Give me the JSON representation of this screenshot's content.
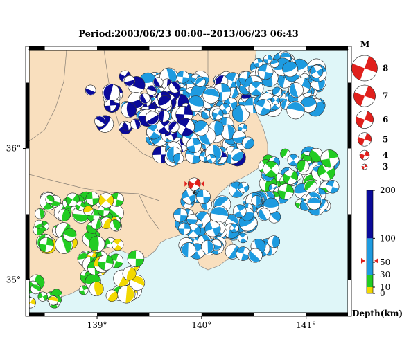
{
  "title": "Period:2003/06/23 00:00--2013/06/23 06:43",
  "axes": {
    "lon_ticks": [
      {
        "value": 139,
        "label": "139°"
      },
      {
        "value": 140,
        "label": "140°"
      },
      {
        "value": 141,
        "label": "141°"
      }
    ],
    "lat_ticks": [
      {
        "value": 36,
        "label": "36°"
      },
      {
        "value": 35,
        "label": "35°"
      }
    ],
    "lon_range": [
      138.35,
      141.4
    ],
    "lat_range": [
      34.75,
      36.75
    ]
  },
  "colors": {
    "land": "#f9dfbe",
    "sea": "#dff6f8",
    "shallow": "#f2d800",
    "mid": "#22cc22",
    "deep": "#1e9be0",
    "deepest": "#0a0a9a",
    "target": "#e0201c"
  },
  "magnitude_legend": {
    "title": "M",
    "items": [
      {
        "label": "8",
        "m": 8
      },
      {
        "label": "7",
        "m": 7
      },
      {
        "label": "6",
        "m": 6
      },
      {
        "label": "5",
        "m": 5
      },
      {
        "label": "4",
        "m": 4
      },
      {
        "label": "3",
        "m": 3
      }
    ]
  },
  "depth_legend": {
    "title": "Depth(km)",
    "ticks": [
      {
        "label": "200",
        "value": 200
      },
      {
        "label": "100",
        "value": 100
      },
      {
        "label": "50",
        "value": 50
      },
      {
        "label": "30",
        "value": 30
      },
      {
        "label": "10",
        "value": 10
      },
      {
        "label": "0",
        "value": 0
      }
    ],
    "marker_depth": 53
  },
  "target_event": {
    "lon": 139.93,
    "lat": 35.73,
    "depth": 53,
    "m": 5.2
  }
}
